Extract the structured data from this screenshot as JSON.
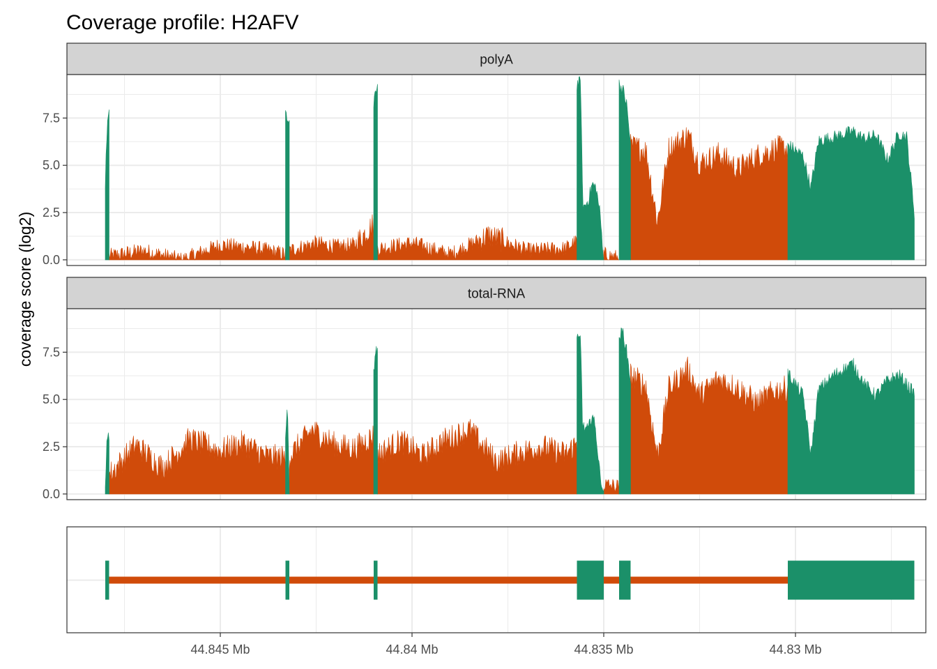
{
  "chart_data": {
    "type": "area",
    "title": "Coverage profile: H2AFV",
    "ylabel": "coverage score (log2)",
    "xlabel": "",
    "x_unit": "Mb",
    "x_reversed": true,
    "xlim": [
      44.849,
      44.8266
    ],
    "ylim": [
      -0.3,
      9.8
    ],
    "grid": true,
    "x_ticks": [
      44.845,
      44.84,
      44.835,
      44.83
    ],
    "x_tick_labels": [
      "44.845 Mb",
      "44.84 Mb",
      "44.835 Mb",
      "44.83 Mb"
    ],
    "y_ticks": [
      0,
      2.5,
      5,
      7.5
    ],
    "y_tick_labels": [
      "0.0",
      "2.5",
      "5.0",
      "7.5"
    ],
    "colors": {
      "exon": "#1b9069",
      "intron": "#d04b0a",
      "strip": "#d3d3d3",
      "grid": "#ebebeb",
      "border": "#333333"
    },
    "gene_model": {
      "exons": [
        [
          44.848,
          44.8479
        ],
        [
          44.8433,
          44.8432
        ],
        [
          44.841,
          44.8409
        ],
        [
          44.8357,
          44.835
        ],
        [
          44.8346,
          44.8343
        ],
        [
          44.8302,
          44.8269
        ]
      ],
      "introns": [
        [
          44.8479,
          44.8433
        ],
        [
          44.8432,
          44.841
        ],
        [
          44.8409,
          44.8357
        ],
        [
          44.835,
          44.8346
        ],
        [
          44.8343,
          44.8302
        ]
      ]
    },
    "panels": [
      {
        "name": "polyA",
        "exon_peaks": [
          7.8,
          7.6,
          9.2,
          9.4,
          9.3,
          6.8
        ],
        "exon_profiles": [
          [
            [
              44.848,
              4.0
            ],
            [
              44.84795,
              7.2
            ],
            [
              44.8479,
              7.8
            ]
          ],
          [
            [
              44.8433,
              7.6
            ],
            [
              44.84325,
              7.4
            ],
            [
              44.8432,
              7.3
            ]
          ],
          [
            [
              44.841,
              8.0
            ],
            [
              44.84095,
              9.0
            ],
            [
              44.8409,
              9.2
            ]
          ],
          [
            [
              44.8357,
              9.3
            ],
            [
              44.8356,
              9.4
            ],
            [
              44.83555,
              3.0
            ],
            [
              44.8355,
              2.8
            ],
            [
              44.8354,
              3.2
            ],
            [
              44.8353,
              4.0
            ],
            [
              44.8352,
              3.8
            ],
            [
              44.8351,
              2.5
            ],
            [
              44.835,
              0.0
            ]
          ],
          [
            [
              44.8346,
              9.3
            ],
            [
              44.8345,
              9.0
            ],
            [
              44.8344,
              8.2
            ],
            [
              44.8343,
              6.0
            ]
          ],
          [
            [
              44.8302,
              6.1
            ],
            [
              44.8298,
              5.5
            ],
            [
              44.8296,
              3.8
            ],
            [
              44.8294,
              6.3
            ],
            [
              44.829,
              6.5
            ],
            [
              44.8285,
              6.8
            ],
            [
              44.8282,
              6.4
            ],
            [
              44.8279,
              6.6
            ],
            [
              44.8276,
              5.3
            ],
            [
              44.8273,
              6.7
            ],
            [
              44.8271,
              6.5
            ],
            [
              44.8269,
              2.5
            ]
          ]
        ],
        "intron_peak_max": 6.6,
        "intron_profiles": [
          [
            [
              44.8479,
              0.2
            ],
            [
              44.847,
              0.5
            ],
            [
              44.846,
              0.0
            ],
            [
              44.845,
              0.8
            ],
            [
              44.844,
              0.6
            ],
            [
              44.8433,
              0.3
            ]
          ],
          [
            [
              44.8432,
              0.5
            ],
            [
              44.8425,
              0.9
            ],
            [
              44.842,
              0.7
            ],
            [
              44.8415,
              0.8
            ],
            [
              44.841,
              1.9
            ]
          ],
          [
            [
              44.8409,
              0.6
            ],
            [
              44.84,
              0.9
            ],
            [
              44.839,
              0.3
            ],
            [
              44.838,
              1.3
            ],
            [
              44.837,
              0.5
            ],
            [
              44.836,
              0.6
            ],
            [
              44.8357,
              1.0
            ]
          ],
          [
            [
              44.835,
              0.3
            ],
            [
              44.8346,
              0.1
            ]
          ],
          [
            [
              44.8343,
              6.0
            ],
            [
              44.8339,
              5.8
            ],
            [
              44.8336,
              2.0
            ],
            [
              44.8333,
              5.9
            ],
            [
              44.8328,
              6.6
            ],
            [
              44.8325,
              5.1
            ],
            [
              44.832,
              5.6
            ],
            [
              44.8315,
              4.8
            ],
            [
              44.831,
              5.5
            ],
            [
              44.8305,
              5.9
            ],
            [
              44.8302,
              5.9
            ]
          ]
        ]
      },
      {
        "name": "total-RNA",
        "exon_peaks": [
          3.2,
          4.7,
          7.7,
          8.2,
          8.6,
          6.9
        ],
        "exon_profiles": [
          [
            [
              44.848,
              0.5
            ],
            [
              44.84795,
              3.0
            ],
            [
              44.8479,
              3.2
            ]
          ],
          [
            [
              44.8433,
              3.0
            ],
            [
              44.84325,
              4.7
            ],
            [
              44.8432,
              0.0
            ]
          ],
          [
            [
              44.841,
              6.5
            ],
            [
              44.84095,
              7.5
            ],
            [
              44.8409,
              7.7
            ]
          ],
          [
            [
              44.8357,
              8.1
            ],
            [
              44.8356,
              8.2
            ],
            [
              44.83555,
              3.5
            ],
            [
              44.8354,
              3.4
            ],
            [
              44.8353,
              4.3
            ],
            [
              44.8352,
              3.2
            ],
            [
              44.8351,
              1.0
            ],
            [
              44.835,
              0.0
            ]
          ],
          [
            [
              44.8346,
              8.3
            ],
            [
              44.8345,
              8.6
            ],
            [
              44.8344,
              7.5
            ],
            [
              44.8343,
              6.0
            ]
          ],
          [
            [
              44.8302,
              6.4
            ],
            [
              44.8298,
              5.2
            ],
            [
              44.8296,
              2.1
            ],
            [
              44.8294,
              5.5
            ],
            [
              44.829,
              6.3
            ],
            [
              44.8285,
              6.9
            ],
            [
              44.8282,
              5.8
            ],
            [
              44.8279,
              5.2
            ],
            [
              44.8276,
              6.0
            ],
            [
              44.8273,
              6.3
            ],
            [
              44.8271,
              5.8
            ],
            [
              44.8269,
              5.3
            ]
          ]
        ],
        "intron_peak_max": 6.6,
        "intron_profiles": [
          [
            [
              44.8479,
              1.0
            ],
            [
              44.8472,
              2.6
            ],
            [
              44.8465,
              1.4
            ],
            [
              44.8458,
              2.9
            ],
            [
              44.845,
              2.3
            ],
            [
              44.8444,
              2.7
            ],
            [
              44.8438,
              2.0
            ],
            [
              44.8433,
              1.9
            ]
          ],
          [
            [
              44.8432,
              2.0
            ],
            [
              44.8426,
              3.4
            ],
            [
              44.842,
              2.6
            ],
            [
              44.8415,
              2.4
            ],
            [
              44.841,
              3.1
            ]
          ],
          [
            [
              44.8409,
              2.1
            ],
            [
              44.8403,
              2.8
            ],
            [
              44.8397,
              2.0
            ],
            [
              44.8392,
              2.8
            ],
            [
              44.8385,
              3.4
            ],
            [
              44.8378,
              1.7
            ],
            [
              44.8372,
              2.2
            ],
            [
              44.8366,
              2.5
            ],
            [
              44.836,
              2.1
            ],
            [
              44.8357,
              2.7
            ]
          ],
          [
            [
              44.835,
              0.5
            ],
            [
              44.8346,
              0.4
            ]
          ],
          [
            [
              44.8343,
              6.3
            ],
            [
              44.8339,
              5.7
            ],
            [
              44.8336,
              2.0
            ],
            [
              44.8333,
              5.6
            ],
            [
              44.8328,
              6.6
            ],
            [
              44.8325,
              5.2
            ],
            [
              44.832,
              6.1
            ],
            [
              44.8315,
              5.6
            ],
            [
              44.831,
              4.8
            ],
            [
              44.8305,
              5.5
            ],
            [
              44.8302,
              5.6
            ]
          ]
        ]
      }
    ]
  }
}
